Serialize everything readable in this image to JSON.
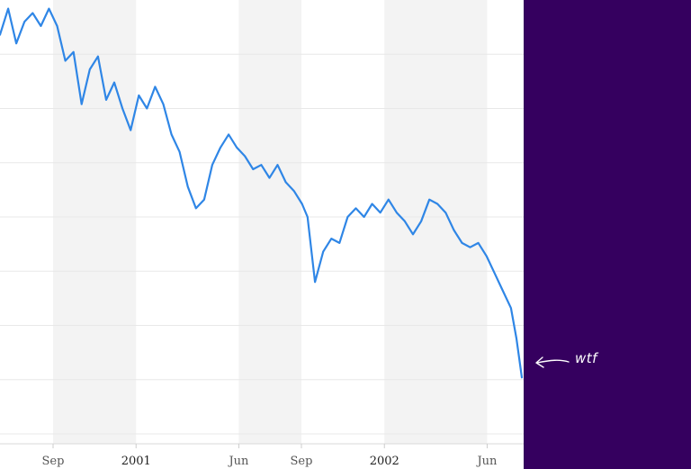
{
  "chart_data": {
    "type": "line",
    "title": "",
    "xlabel": "",
    "ylabel": "",
    "x_range": [
      "2000-06-15",
      "2002-07-22"
    ],
    "ylim": [
      0,
      100
    ],
    "y_axis_labels_shown": false,
    "grid": {
      "horizontal": true,
      "alternating_bands": true
    },
    "x_ticks": [
      {
        "label": "Sep",
        "date": "2000-09-01",
        "kind": "month"
      },
      {
        "label": "2001",
        "date": "2001-01-01",
        "kind": "year"
      },
      {
        "label": "Jun",
        "date": "2001-06-01",
        "kind": "month"
      },
      {
        "label": "Sep",
        "date": "2001-09-01",
        "kind": "month"
      },
      {
        "label": "2002",
        "date": "2002-01-01",
        "kind": "year"
      },
      {
        "label": "Jun",
        "date": "2002-06-01",
        "kind": "month"
      }
    ],
    "bands": [
      [
        "2000-09-01",
        "2001-01-01"
      ],
      [
        "2001-06-01",
        "2001-09-01"
      ],
      [
        "2002-01-01",
        "2002-06-01"
      ]
    ],
    "series": [
      {
        "color": "#2f86e6",
        "points": [
          [
            "2000-06-15",
            92
          ],
          [
            "2000-06-27",
            98
          ],
          [
            "2000-07-09",
            90
          ],
          [
            "2000-07-21",
            95
          ],
          [
            "2000-08-02",
            97
          ],
          [
            "2000-08-14",
            94
          ],
          [
            "2000-08-26",
            98
          ],
          [
            "2000-09-07",
            94
          ],
          [
            "2000-09-19",
            86
          ],
          [
            "2000-10-01",
            88
          ],
          [
            "2000-10-13",
            76
          ],
          [
            "2000-10-25",
            84
          ],
          [
            "2000-11-06",
            87
          ],
          [
            "2000-11-18",
            77
          ],
          [
            "2000-11-30",
            81
          ],
          [
            "2000-12-12",
            75
          ],
          [
            "2000-12-24",
            70
          ],
          [
            "2001-01-05",
            78
          ],
          [
            "2001-01-17",
            75
          ],
          [
            "2001-01-29",
            80
          ],
          [
            "2001-02-10",
            76
          ],
          [
            "2001-02-22",
            69
          ],
          [
            "2001-03-06",
            65
          ],
          [
            "2001-03-18",
            57
          ],
          [
            "2001-03-30",
            52
          ],
          [
            "2001-04-11",
            54
          ],
          [
            "2001-04-23",
            62
          ],
          [
            "2001-05-05",
            66
          ],
          [
            "2001-05-17",
            69
          ],
          [
            "2001-05-29",
            66
          ],
          [
            "2001-06-10",
            64
          ],
          [
            "2001-06-22",
            61
          ],
          [
            "2001-07-04",
            62
          ],
          [
            "2001-07-16",
            59
          ],
          [
            "2001-07-28",
            62
          ],
          [
            "2001-08-09",
            58
          ],
          [
            "2001-08-21",
            56
          ],
          [
            "2001-09-02",
            53
          ],
          [
            "2001-09-10",
            50
          ],
          [
            "2001-09-21",
            35
          ],
          [
            "2001-10-03",
            42
          ],
          [
            "2001-10-15",
            45
          ],
          [
            "2001-10-27",
            44
          ],
          [
            "2001-11-08",
            50
          ],
          [
            "2001-11-20",
            52
          ],
          [
            "2001-12-02",
            50
          ],
          [
            "2001-12-14",
            53
          ],
          [
            "2001-12-26",
            51
          ],
          [
            "2002-01-07",
            54
          ],
          [
            "2002-01-19",
            51
          ],
          [
            "2002-01-31",
            49
          ],
          [
            "2002-02-12",
            46
          ],
          [
            "2002-02-24",
            49
          ],
          [
            "2002-03-08",
            54
          ],
          [
            "2002-03-20",
            53
          ],
          [
            "2002-04-01",
            51
          ],
          [
            "2002-04-13",
            47
          ],
          [
            "2002-04-25",
            44
          ],
          [
            "2002-05-07",
            43
          ],
          [
            "2002-05-19",
            44
          ],
          [
            "2002-05-31",
            41
          ],
          [
            "2002-06-12",
            37
          ],
          [
            "2002-06-24",
            33
          ],
          [
            "2002-07-06",
            29
          ],
          [
            "2002-07-14",
            22
          ],
          [
            "2002-07-22",
            13
          ]
        ]
      }
    ],
    "annotations": [
      {
        "text": "wtf",
        "points_to": [
          "2002-07-22",
          13
        ]
      }
    ]
  },
  "colors": {
    "line": "#2f86e6",
    "band": "#f3f3f3",
    "gridline": "#e8e8e8",
    "side_panel": "#35005f",
    "annotation": "#ffffff"
  }
}
